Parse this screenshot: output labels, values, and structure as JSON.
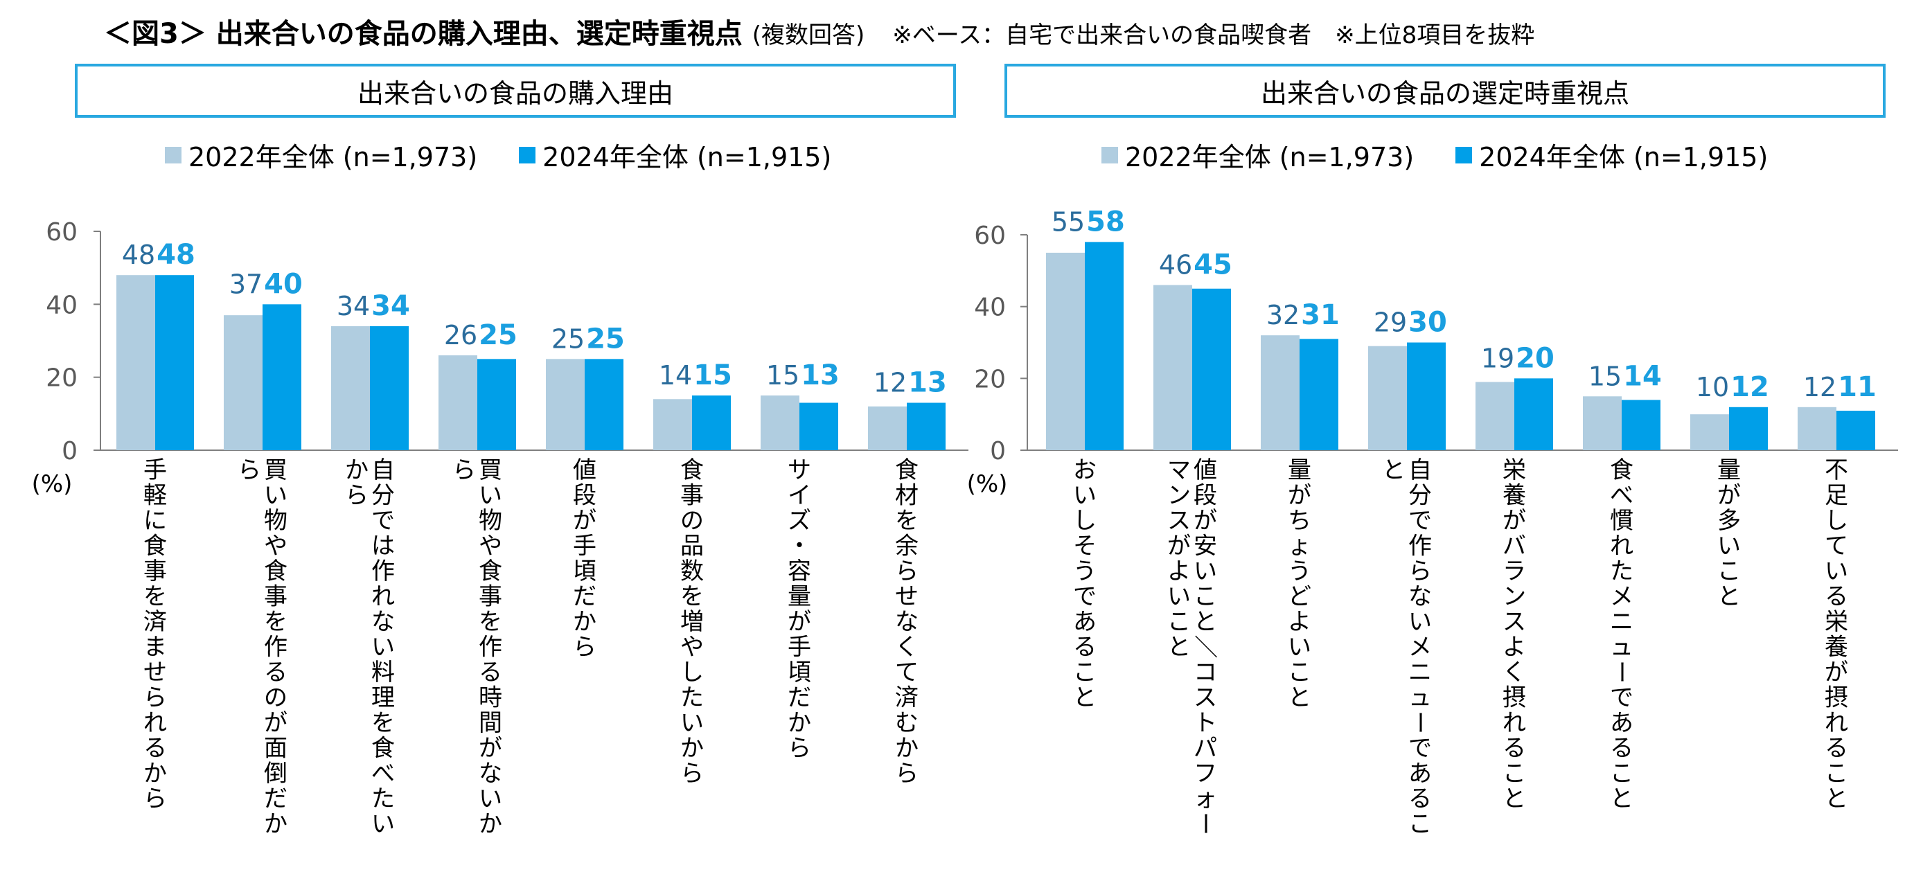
{
  "title": {
    "main": "＜図3＞ 出来合いの食品の購入理由、選定時重視点",
    "sub": "(複数回答)",
    "note": "※ベース：自宅で出来合いの食品喫食者　※上位8項目を抜粋"
  },
  "colors": {
    "series_2022": "#b0cde0",
    "series_2024": "#009fe8",
    "axis": "#7f7f7f",
    "label_2022": "#2a6c9c",
    "label_2024": "#1a9fe0"
  },
  "chart_data": [
    {
      "type": "bar",
      "title": "出来合いの食品の購入理由",
      "unit": "(%)",
      "ylim": [
        0,
        60
      ],
      "yticks": [
        "0",
        "20",
        "40",
        "60"
      ],
      "legend": [
        "2022年全体 (n=1,973)",
        "2024年全体 (n=1,915)"
      ],
      "categories": [
        "手軽に食事を済ませられるから",
        "買い物や食事を作るのが面倒だから",
        "自分では作れない料理を食べたいから",
        "買い物や食事を作る時間がないから",
        "値段が手頃だから",
        "食事の品数を増やしたいから",
        "サイズ・容量が手頃だから",
        "食材を余らせなくて済むから"
      ],
      "series": [
        {
          "name": "2022年全体 (n=1,973)",
          "values": [
            48,
            37,
            34,
            26,
            25,
            14,
            15,
            12
          ]
        },
        {
          "name": "2024年全体 (n=1,915)",
          "values": [
            48,
            40,
            34,
            25,
            25,
            15,
            13,
            13
          ]
        }
      ]
    },
    {
      "type": "bar",
      "title": "出来合いの食品の選定時重視点",
      "unit": "(%)",
      "ylim": [
        0,
        60
      ],
      "yticks": [
        "0",
        "20",
        "40",
        "60"
      ],
      "legend": [
        "2022年全体 (n=1,973)",
        "2024年全体 (n=1,915)"
      ],
      "categories": [
        "おいしそうであること",
        "値段が安いこと／コストパフォーマンスがよいこと",
        "量がちょうどよいこと",
        "自分で作らないメニューであること",
        "栄養がバランスよく摂れること",
        "食べ慣れたメニューであること",
        "量が多いこと",
        "不足している栄養が摂れること"
      ],
      "series": [
        {
          "name": "2022年全体 (n=1,973)",
          "values": [
            55,
            46,
            32,
            29,
            19,
            15,
            10,
            12
          ]
        },
        {
          "name": "2024年全体 (n=1,915)",
          "values": [
            58,
            45,
            31,
            30,
            20,
            14,
            12,
            11
          ]
        }
      ]
    }
  ]
}
